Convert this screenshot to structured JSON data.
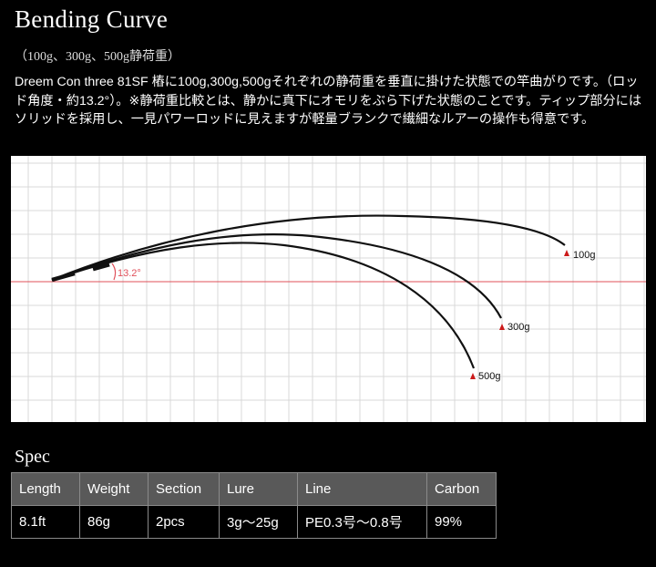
{
  "header": {
    "title": "Bending Curve",
    "subtitle": "（100g、300g、500g静荷重）",
    "description": "Dreem Con three 81SF 樁に100g,300g,500gそれぞれの静荷重を垂直に掛けた状態での竿曲がりです。（ロッド角度・約13.2°）。※静荷重比較とは、静かに真下にオモリをぶら下げた状態のことです。ティップ部分にはソリッドを採用し、一見パワーロッドに見えますが軽量ブランクで繊細なルアーの操作も得意です。"
  },
  "chart": {
    "angle_label": "13.2°",
    "loads": [
      {
        "label": "100g"
      },
      {
        "label": "300g"
      },
      {
        "label": "500g"
      }
    ],
    "colors": {
      "reference_line": "#e0505a",
      "marker": "#cc1a1a",
      "grid": "#d9d9d9",
      "rod": "#111111"
    }
  },
  "spec": {
    "title": "Spec",
    "columns": [
      "Length",
      "Weight",
      "Section",
      "Lure",
      "Line",
      "Carbon"
    ],
    "values": [
      "8.1ft",
      "86g",
      "2pcs",
      "3g～25g",
      "PE0.3号～0.8号",
      "99%"
    ]
  }
}
